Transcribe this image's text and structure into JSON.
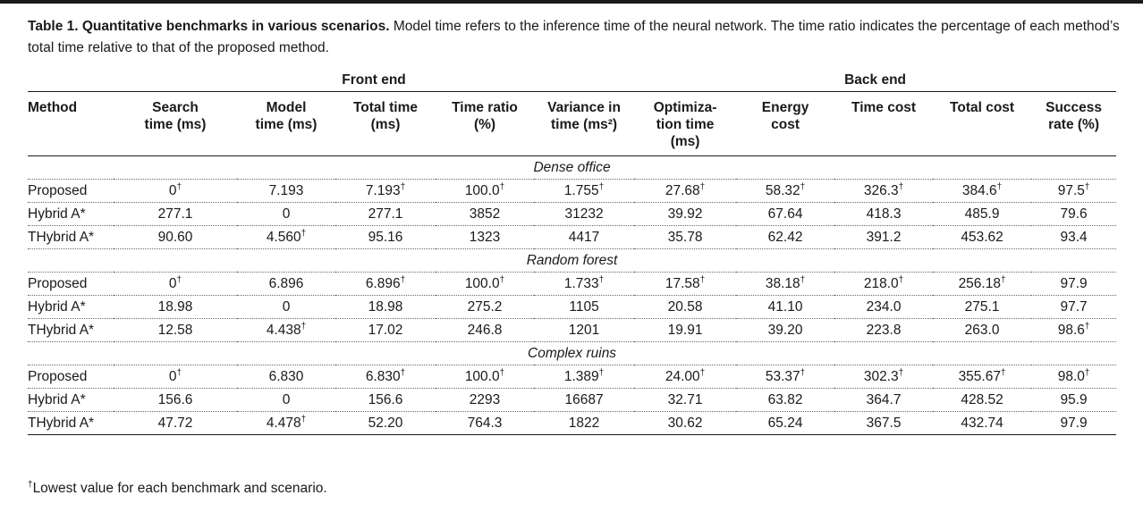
{
  "caption": {
    "bold": "Table 1. Quantitative benchmarks in various scenarios.",
    "text": " Model time refers to the inference time of the neural network. The time ratio indicates the percentage of each method’s total time relative to that of the proposed method."
  },
  "groups": {
    "front_end": "Front end",
    "back_end": "Back end"
  },
  "columns": [
    [
      "Method"
    ],
    [
      "Search",
      "time (ms)"
    ],
    [
      "Model",
      "time (ms)"
    ],
    [
      "Total time",
      "(ms)"
    ],
    [
      "Time ratio",
      "(%)"
    ],
    [
      "Variance in",
      "time (ms²)"
    ],
    [
      "Optimiza-",
      "tion time",
      "(ms)"
    ],
    [
      "Energy",
      "cost"
    ],
    [
      "Time cost"
    ],
    [
      "Total cost"
    ],
    [
      "Success",
      "rate (%)"
    ]
  ],
  "dagger": "†",
  "scenarios": [
    {
      "name": "Dense office",
      "rows": [
        {
          "method": "Proposed",
          "values": [
            [
              "0",
              true
            ],
            [
              "7.193",
              false
            ],
            [
              "7.193",
              true
            ],
            [
              "100.0",
              true
            ],
            [
              "1.755",
              true
            ],
            [
              "27.68",
              true
            ],
            [
              "58.32",
              true
            ],
            [
              "326.3",
              true
            ],
            [
              "384.6",
              true
            ],
            [
              "97.5",
              true
            ]
          ]
        },
        {
          "method": "Hybrid A*",
          "values": [
            [
              "277.1",
              false
            ],
            [
              "0",
              false
            ],
            [
              "277.1",
              false
            ],
            [
              "3852",
              false
            ],
            [
              "31232",
              false
            ],
            [
              "39.92",
              false
            ],
            [
              "67.64",
              false
            ],
            [
              "418.3",
              false
            ],
            [
              "485.9",
              false
            ],
            [
              "79.6",
              false
            ]
          ]
        },
        {
          "method": "THybrid A*",
          "values": [
            [
              "90.60",
              false
            ],
            [
              "4.560",
              true
            ],
            [
              "95.16",
              false
            ],
            [
              "1323",
              false
            ],
            [
              "4417",
              false
            ],
            [
              "35.78",
              false
            ],
            [
              "62.42",
              false
            ],
            [
              "391.2",
              false
            ],
            [
              "453.62",
              false
            ],
            [
              "93.4",
              false
            ]
          ]
        }
      ]
    },
    {
      "name": "Random forest",
      "rows": [
        {
          "method": "Proposed",
          "values": [
            [
              "0",
              true
            ],
            [
              "6.896",
              false
            ],
            [
              "6.896",
              true
            ],
            [
              "100.0",
              true
            ],
            [
              "1.733",
              true
            ],
            [
              "17.58",
              true
            ],
            [
              "38.18",
              true
            ],
            [
              "218.0",
              true
            ],
            [
              "256.18",
              true
            ],
            [
              "97.9",
              false
            ]
          ]
        },
        {
          "method": "Hybrid A*",
          "values": [
            [
              "18.98",
              false
            ],
            [
              "0",
              false
            ],
            [
              "18.98",
              false
            ],
            [
              "275.2",
              false
            ],
            [
              "1105",
              false
            ],
            [
              "20.58",
              false
            ],
            [
              "41.10",
              false
            ],
            [
              "234.0",
              false
            ],
            [
              "275.1",
              false
            ],
            [
              "97.7",
              false
            ]
          ]
        },
        {
          "method": "THybrid A*",
          "values": [
            [
              "12.58",
              false
            ],
            [
              "4.438",
              true
            ],
            [
              "17.02",
              false
            ],
            [
              "246.8",
              false
            ],
            [
              "1201",
              false
            ],
            [
              "19.91",
              false
            ],
            [
              "39.20",
              false
            ],
            [
              "223.8",
              false
            ],
            [
              "263.0",
              false
            ],
            [
              "98.6",
              true
            ]
          ]
        }
      ]
    },
    {
      "name": "Complex ruins",
      "rows": [
        {
          "method": "Proposed",
          "values": [
            [
              "0",
              true
            ],
            [
              "6.830",
              false
            ],
            [
              "6.830",
              true
            ],
            [
              "100.0",
              true
            ],
            [
              "1.389",
              true
            ],
            [
              "24.00",
              true
            ],
            [
              "53.37",
              true
            ],
            [
              "302.3",
              true
            ],
            [
              "355.67",
              true
            ],
            [
              "98.0",
              true
            ]
          ]
        },
        {
          "method": "Hybrid A*",
          "values": [
            [
              "156.6",
              false
            ],
            [
              "0",
              false
            ],
            [
              "156.6",
              false
            ],
            [
              "2293",
              false
            ],
            [
              "16687",
              false
            ],
            [
              "32.71",
              false
            ],
            [
              "63.82",
              false
            ],
            [
              "364.7",
              false
            ],
            [
              "428.52",
              false
            ],
            [
              "95.9",
              false
            ]
          ]
        },
        {
          "method": "THybrid A*",
          "values": [
            [
              "47.72",
              false
            ],
            [
              "4.478",
              true
            ],
            [
              "52.20",
              false
            ],
            [
              "764.3",
              false
            ],
            [
              "1822",
              false
            ],
            [
              "30.62",
              false
            ],
            [
              "65.24",
              false
            ],
            [
              "367.5",
              false
            ],
            [
              "432.74",
              false
            ],
            [
              "97.9",
              false
            ]
          ]
        }
      ]
    }
  ],
  "footnote": "Lowest value for each benchmark and scenario."
}
